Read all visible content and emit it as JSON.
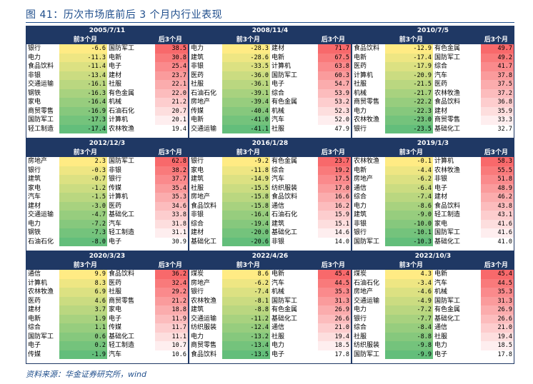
{
  "title": "图 41：历次市场底前后 3 个月内行业表现",
  "source": "资料来源：华金证券研究所，wind",
  "panels": [
    {
      "date": "2005/7/11",
      "before": "前3个月",
      "after": "后3个月",
      "rows": [
        [
          "银行",
          "-6.6",
          "国防军工",
          "38.5"
        ],
        [
          "电力",
          "-11.3",
          "电新",
          "30.8"
        ],
        [
          "食品饮料",
          "-11.4",
          "电子",
          "25.4"
        ],
        [
          "非银",
          "-13.4",
          "建材",
          "23.7"
        ],
        [
          "交通运输",
          "-16.1",
          "社服",
          "22.1"
        ],
        [
          "钢铁",
          "-16.3",
          "有色金属",
          "22.0"
        ],
        [
          "家电",
          "-16.4",
          "机械",
          "21.2"
        ],
        [
          "商贸零售",
          "-16.9",
          "石油石化",
          "20.7"
        ],
        [
          "国防军工",
          "-17.3",
          "计算机",
          "20.1"
        ],
        [
          "轻工制造",
          "-17.4",
          "农林牧渔",
          "19.4"
        ]
      ]
    },
    {
      "date": "2008/11/4",
      "before": "前3个月",
      "after": "后3个月",
      "rows": [
        [
          "电力",
          "-28.3",
          "建材",
          "71.7"
        ],
        [
          "建筑",
          "-28.6",
          "电新",
          "67.5"
        ],
        [
          "非银",
          "-33.5",
          "计算机",
          "63.8"
        ],
        [
          "医药",
          "-36.0",
          "国防军工",
          "60.3"
        ],
        [
          "社服",
          "-36.1",
          "电子",
          "54.7"
        ],
        [
          "石油石化",
          "-39.1",
          "综合",
          "53.9"
        ],
        [
          "房地产",
          "-39.4",
          "有色金属",
          "53.2"
        ],
        [
          "传媒",
          "-40.4",
          "机械",
          "52.3"
        ],
        [
          "电新",
          "-41.0",
          "汽车",
          "52.0"
        ],
        [
          "交通运输",
          "-41.1",
          "社服",
          "47.9"
        ]
      ]
    },
    {
      "date": "2010/7/5",
      "before": "前3个月",
      "after": "后3个月",
      "rows": [
        [
          "食品饮料",
          "-12.9",
          "有色金属",
          "49.7"
        ],
        [
          "电新",
          "-17.4",
          "国防军工",
          "49.2"
        ],
        [
          "医药",
          "-17.9",
          "综合",
          "41.7"
        ],
        [
          "计算机",
          "-20.9",
          "汽车",
          "37.8"
        ],
        [
          "社服",
          "-21.5",
          "医药",
          "37.5"
        ],
        [
          "机械",
          "-21.7",
          "农林牧渔",
          "37.2"
        ],
        [
          "商贸零售",
          "-22.2",
          "食品饮料",
          "36.8"
        ],
        [
          "电力",
          "-22.3",
          "建材",
          "35.9"
        ],
        [
          "农林牧渔",
          "-23.0",
          "商贸零售",
          "33.3"
        ],
        [
          "银行",
          "-23.5",
          "基础化工",
          "32.7"
        ]
      ]
    },
    {
      "date": "2012/12/3",
      "before": "前3个月",
      "after": "后3个月",
      "rows": [
        [
          "房地产",
          "2.3",
          "国防军工",
          "62.8"
        ],
        [
          "银行",
          "-0.3",
          "非银",
          "38.2"
        ],
        [
          "建筑",
          "-0.7",
          "银行",
          "37.7"
        ],
        [
          "家电",
          "-1.2",
          "传媒",
          "35.4"
        ],
        [
          "汽车",
          "-1.5",
          "计算机",
          "35.3"
        ],
        [
          "建材",
          "-3.0",
          "医药",
          "34.6"
        ],
        [
          "交通运输",
          "-4.7",
          "基础化工",
          "33.8"
        ],
        [
          "电力",
          "-7.2",
          "汽车",
          "31.8"
        ],
        [
          "钢铁",
          "-7.3",
          "轻工制造",
          "31.1"
        ],
        [
          "石油石化",
          "-8.0",
          "电子",
          "30.9"
        ]
      ]
    },
    {
      "date": "2016/1/28",
      "before": "前3个月",
      "after": "后3个月",
      "rows": [
        [
          "银行",
          "-9.2",
          "有色金属",
          "23.7"
        ],
        [
          "家电",
          "-11.8",
          "综合",
          "19.2"
        ],
        [
          "建筑",
          "-14.9",
          "汽车",
          "17.5"
        ],
        [
          "社服",
          "-15.5",
          "纺织服装",
          "17.0"
        ],
        [
          "房地产",
          "-15.8",
          "食品饮料",
          "16.6"
        ],
        [
          "食品饮料",
          "-15.8",
          "通信",
          "16.2"
        ],
        [
          "非银",
          "-16.4",
          "石油石化",
          "15.9"
        ],
        [
          "综合",
          "-19.4",
          "建筑",
          "15.1"
        ],
        [
          "建材",
          "-20.0",
          "基础化工",
          "14.6"
        ],
        [
          "基础化工",
          "-20.6",
          "非银",
          "14.0"
        ]
      ]
    },
    {
      "date": "2019/1/3",
      "before": "前3个月",
      "after": "后3个月",
      "rows": [
        [
          "农林牧渔",
          "-0.1",
          "计算机",
          "58.3"
        ],
        [
          "电新",
          "-4.4",
          "农林牧渔",
          "55.5"
        ],
        [
          "房地产",
          "-6.2",
          "非银",
          "51.8"
        ],
        [
          "通信",
          "-6.4",
          "电子",
          "48.9"
        ],
        [
          "综合",
          "-7.4",
          "建材",
          "46.2"
        ],
        [
          "电力",
          "-8.6",
          "食品饮料",
          "43.8"
        ],
        [
          "建筑",
          "-9.0",
          "轻工制造",
          "43.1"
        ],
        [
          "非银",
          "-10.0",
          "家电",
          "41.6"
        ],
        [
          "银行",
          "-10.1",
          "国防军工",
          "41.6"
        ],
        [
          "国防军工",
          "-10.3",
          "基础化工",
          "41.0"
        ]
      ]
    },
    {
      "date": "2020/3/23",
      "before": "前3个月",
      "after": "后3个月",
      "rows": [
        [
          "通信",
          "9.9",
          "食品饮料",
          "36.2"
        ],
        [
          "计算机",
          "8.3",
          "医药",
          "32.4"
        ],
        [
          "农林牧渔",
          "6.9",
          "社服",
          "29.2"
        ],
        [
          "医药",
          "4.6",
          "商贸零售",
          "21.2"
        ],
        [
          "建材",
          "3.7",
          "家电",
          "18.8"
        ],
        [
          "电新",
          "1.9",
          "电子",
          "11.9"
        ],
        [
          "综合",
          "1.1",
          "传媒",
          "11.7"
        ],
        [
          "国防军工",
          "0.6",
          "基础化工",
          "11.1"
        ],
        [
          "电子",
          "0.2",
          "轻工制造",
          "10.7"
        ],
        [
          "传媒",
          "-1.9",
          "汽车",
          "10.6"
        ]
      ]
    },
    {
      "date": "2022/4/26",
      "before": "前3个月",
      "after": "后3个月",
      "rows": [
        [
          "煤炭",
          "8.6",
          "电新",
          "45.4"
        ],
        [
          "房地产",
          "-6.2",
          "汽车",
          "44.5"
        ],
        [
          "银行",
          "-7.4",
          "机械",
          "35.3"
        ],
        [
          "农林牧渔",
          "-8.1",
          "国防军工",
          "31.3"
        ],
        [
          "建筑",
          "-8.8",
          "有色金属",
          "26.9"
        ],
        [
          "交通运输",
          "-11.2",
          "基础化工",
          "26.6"
        ],
        [
          "纺织服装",
          "-12.4",
          "通信",
          "21.0"
        ],
        [
          "电力",
          "-13.2",
          "社服",
          "19.4"
        ],
        [
          "商贸零售",
          "-13.4",
          "电力",
          "18.5"
        ],
        [
          "食品饮料",
          "-13.5",
          "电子",
          "17.8"
        ]
      ]
    },
    {
      "date": "2022/10/3",
      "before": "前3个月",
      "after": "后3个月",
      "rows": [
        [
          "煤炭",
          "4.3",
          "电新",
          "45.4"
        ],
        [
          "石油石化",
          "-3.4",
          "汽车",
          "44.5"
        ],
        [
          "房地产",
          "-4.6",
          "机械",
          "35.3"
        ],
        [
          "交通运输",
          "-4.9",
          "国防军工",
          "31.3"
        ],
        [
          "电力",
          "-7.2",
          "有色金属",
          "26.9"
        ],
        [
          "银行",
          "-7.7",
          "基础化工",
          "26.6"
        ],
        [
          "综合",
          "-8.4",
          "通信",
          "21.0"
        ],
        [
          "社服",
          "-8.8",
          "社服",
          "19.4"
        ],
        [
          "纺织服装",
          "-9.8",
          "电力",
          "18.5"
        ],
        [
          "国防军工",
          "-9.9",
          "电子",
          "17.8"
        ]
      ]
    }
  ]
}
